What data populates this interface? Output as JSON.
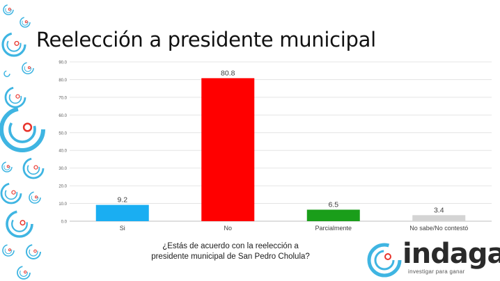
{
  "chart_data": {
    "type": "bar",
    "title": "Reelección a presidente municipal",
    "xlabel": "¿Estás de acuerdo con la reelección a presidente municipal de San Pedro Cholula?",
    "ylabel": "",
    "ylim": [
      0,
      90
    ],
    "y_ticks": [
      "0.0",
      "10.0",
      "20.0",
      "30.0",
      "40.0",
      "50.0",
      "60.0",
      "70.0",
      "80.0",
      "90.0"
    ],
    "categories": [
      "Si",
      "No",
      "Parcialmente",
      "No sabe/No contestó"
    ],
    "values": [
      9.2,
      80.8,
      6.5,
      3.4
    ],
    "value_labels": [
      "9.2",
      "80.8",
      "6.5",
      "3.4"
    ],
    "colors": [
      "#1aaef2",
      "#ff0000",
      "#1a9e1a",
      "#d4d4d4"
    ],
    "grid": true,
    "legend": "none"
  },
  "logo": {
    "word": "indaga",
    "tagline": "investigar para ganar",
    "accent": "#3fb5e2",
    "ring_accent": "#e8342c"
  }
}
